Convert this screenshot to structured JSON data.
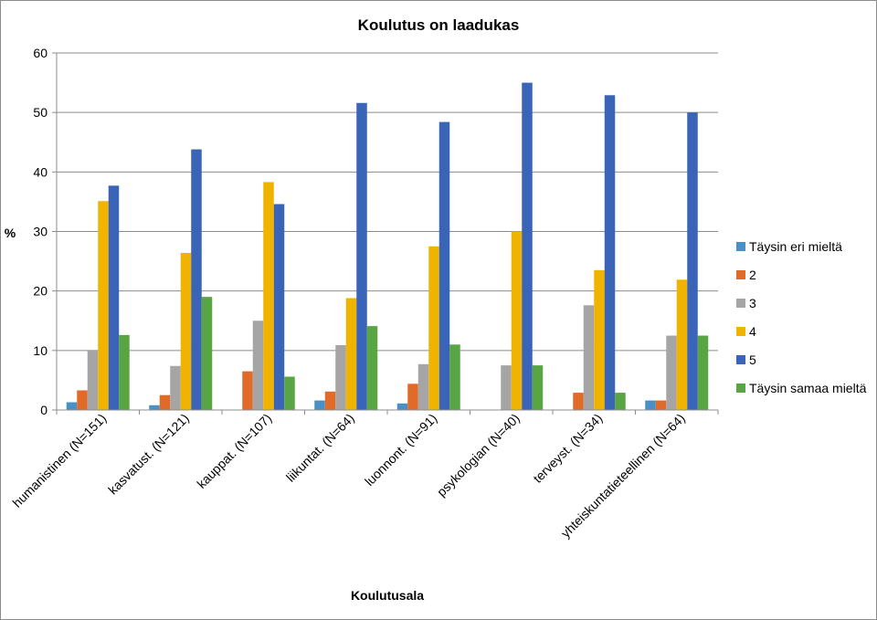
{
  "chart_data": {
    "type": "bar",
    "title": "Koulutus on laadukas",
    "xlabel": "Koulutusala",
    "ylabel": "%",
    "ylim": [
      0,
      60
    ],
    "yticks": [
      0,
      10,
      20,
      30,
      40,
      50,
      60
    ],
    "grid": true,
    "legend_position": "right",
    "categories": [
      "humanistinen (N=151)",
      "kasvatust. (N=121)",
      "kauppat. (N=107)",
      "liikuntat. (N=64)",
      "luonnont. (N=91)",
      "psykologian (N=40)",
      "terveyst. (N=34)",
      "yhteiskuntatieteellinen (N=64)"
    ],
    "series": [
      {
        "name": "Täysin eri mieltä",
        "color": "#4a90c4",
        "values": [
          1.3,
          0.8,
          0,
          1.6,
          1.1,
          0,
          0,
          1.6
        ]
      },
      {
        "name": "2",
        "color": "#e06a28",
        "values": [
          3.3,
          2.5,
          6.5,
          3.1,
          4.4,
          0,
          2.9,
          1.6
        ]
      },
      {
        "name": "3",
        "color": "#a5a5a5",
        "values": [
          9.9,
          7.4,
          15.0,
          10.9,
          7.7,
          7.5,
          17.6,
          12.5
        ]
      },
      {
        "name": "4",
        "color": "#f0b400",
        "values": [
          35.1,
          26.4,
          38.3,
          18.8,
          27.5,
          30.0,
          23.5,
          21.9
        ]
      },
      {
        "name": "5",
        "color": "#3a64b8",
        "values": [
          37.7,
          43.8,
          34.6,
          51.6,
          48.4,
          55.0,
          52.9,
          50.0
        ]
      },
      {
        "name": "Täysin samaa mieltä",
        "color": "#5aa543",
        "values": [
          12.6,
          19.0,
          5.6,
          14.1,
          11.0,
          7.5,
          2.9,
          12.5
        ]
      }
    ]
  }
}
